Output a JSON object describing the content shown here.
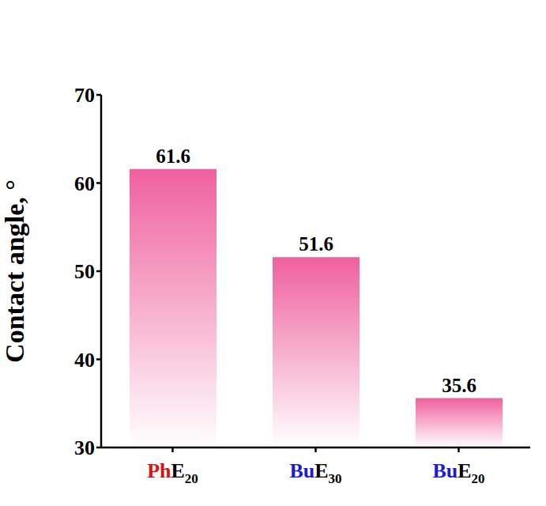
{
  "chart_data": {
    "type": "bar",
    "y_label": "Contact angle, °",
    "categories": [
      "PhE20",
      "BuE30",
      "BuE20"
    ],
    "values": [
      61.6,
      51.6,
      35.6
    ],
    "color": "#f0609e",
    "ylim": [
      30,
      70
    ],
    "yticks": [
      30,
      40,
      50,
      60,
      70
    ],
    "grid": false,
    "data_labels": true
  }
}
